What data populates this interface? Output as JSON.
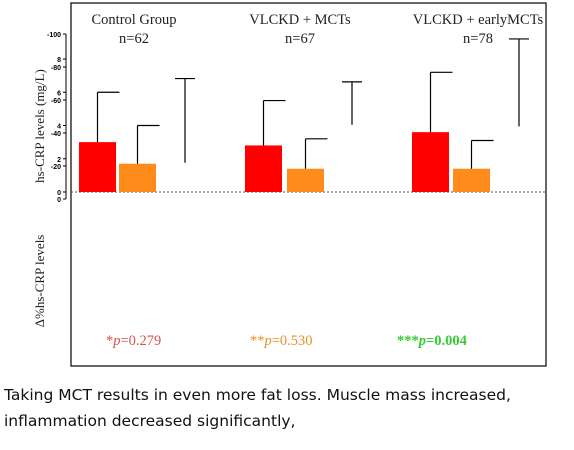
{
  "chart_data": {
    "type": "bar",
    "groups": [
      {
        "title": "Control Group",
        "n": "n=62"
      },
      {
        "title": "VLCKD + MCTs",
        "n": "n=67"
      },
      {
        "title": "VLCKD + earlyMCTs",
        "n": "n=78"
      }
    ],
    "top_panel": {
      "ylabel": "hs-CRP levels (mg/L)",
      "ylim": [
        0,
        8
      ],
      "yticks": [
        0,
        2,
        4,
        6,
        8
      ],
      "series": [
        {
          "color": "#ff0000",
          "values": [
            3.0,
            2.8,
            3.6
          ],
          "error_upper": [
            6.0,
            5.5,
            7.2
          ]
        },
        {
          "color": "#ff8c1a",
          "values": [
            1.7,
            1.4,
            1.4
          ],
          "error_upper": [
            4.0,
            3.2,
            3.1
          ]
        }
      ]
    },
    "bottom_panel": {
      "ylabel": "Δ%hs-CRP levels",
      "ylim": [
        -100,
        0
      ],
      "yticks": [
        0,
        -20,
        -40,
        -60,
        -80,
        -100
      ],
      "series": [
        {
          "color": "#33ff33",
          "values": [
            -22,
            -45,
            -44
          ],
          "error_lower": [
            -73,
            -71,
            -97
          ]
        }
      ]
    },
    "annotations": [
      {
        "stars": "*",
        "p": "p",
        "value": "=0.279",
        "color": "#d9534f",
        "bold": false
      },
      {
        "stars": "**",
        "p": "p",
        "value": "=0.530",
        "color": "#e8902a",
        "bold": false
      },
      {
        "stars": "***",
        "p": "p",
        "value": "=0.004",
        "color": "#33cc33",
        "bold": true
      }
    ]
  },
  "caption": {
    "line1": "Taking MCT results in even more fat loss. Muscle mass increased,",
    "line2": "inflammation decreased significantly,"
  }
}
